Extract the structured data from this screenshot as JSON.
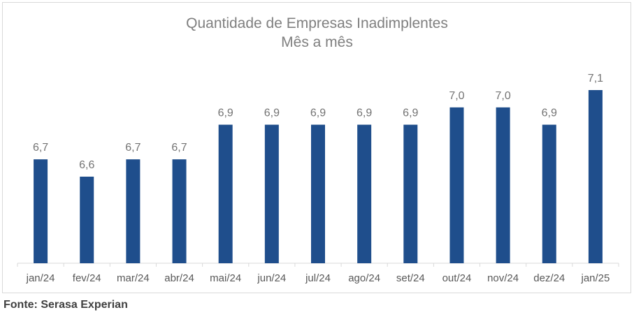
{
  "chart_data": {
    "type": "bar",
    "title": "Quantidade de Empresas Inadimplentes",
    "subtitle": "Mês a mês",
    "categories": [
      "jan/24",
      "fev/24",
      "mar/24",
      "abr/24",
      "mai/24",
      "jun/24",
      "jul/24",
      "ago/24",
      "set/24",
      "out/24",
      "nov/24",
      "dez/24",
      "jan/25"
    ],
    "values": [
      6.7,
      6.6,
      6.7,
      6.7,
      6.9,
      6.9,
      6.9,
      6.9,
      6.9,
      7.0,
      7.0,
      6.9,
      7.1
    ],
    "data_labels": [
      "6,7",
      "6,6",
      "6,7",
      "6,7",
      "6,9",
      "6,9",
      "6,9",
      "6,9",
      "6,9",
      "7,0",
      "7,0",
      "6,9",
      "7,1"
    ],
    "xlabel": "",
    "ylabel": "",
    "ylim": [
      6.1,
      7.1
    ],
    "grid": false,
    "bar_color": "#1f4e8c"
  },
  "source": "Fonte: Serasa Experian"
}
